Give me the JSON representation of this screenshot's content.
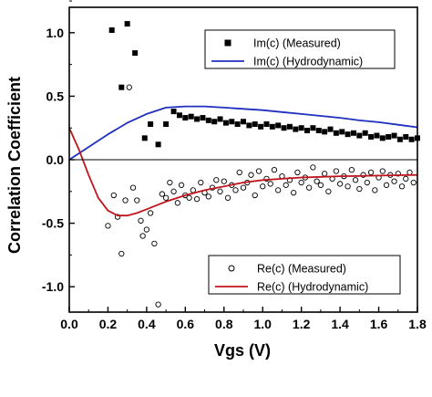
{
  "chart_data": {
    "type": "scatter",
    "xlabel": "Vgs (V)",
    "ylabel": "Correlation Coefficient",
    "xlim": [
      0.0,
      1.8
    ],
    "ylim": [
      -1.2,
      1.2
    ],
    "xticks": [
      "0.0",
      "0.2",
      "0.4",
      "0.6",
      "0.8",
      "1.0",
      "1.2",
      "1.4",
      "1.6",
      "1.8"
    ],
    "yticks": [
      "-1.0",
      "-0.5",
      "0.0",
      "0.5",
      "1.0"
    ],
    "zero_line": true,
    "grid": false,
    "legend_top": {
      "placement": "top-right",
      "entries": [
        {
          "label": "Im(c) (Measured)",
          "marker": "filled-square",
          "color": "#000000"
        },
        {
          "label": "Im(c) (Hydrodynamic)",
          "marker": "line",
          "color": "#1f2fbf"
        }
      ]
    },
    "legend_bottom": {
      "placement": "bottom-right",
      "entries": [
        {
          "label": "Re(c) (Measured)",
          "marker": "open-circle",
          "color": "#000000"
        },
        {
          "label": "Re(c) (Hydrodynamic)",
          "marker": "line",
          "color": "#c0141c"
        }
      ]
    },
    "series": [
      {
        "name": "Im(c) (Measured)",
        "style": "filled-square",
        "color": "#000000",
        "x": [
          0.22,
          0.27,
          0.3,
          0.34,
          0.39,
          0.42,
          0.46,
          0.5,
          0.54,
          0.57,
          0.6,
          0.63,
          0.66,
          0.69,
          0.72,
          0.75,
          0.78,
          0.81,
          0.84,
          0.87,
          0.9,
          0.93,
          0.96,
          0.99,
          1.02,
          1.05,
          1.08,
          1.11,
          1.14,
          1.17,
          1.2,
          1.23,
          1.26,
          1.29,
          1.32,
          1.35,
          1.38,
          1.41,
          1.44,
          1.47,
          1.5,
          1.53,
          1.56,
          1.59,
          1.62,
          1.65,
          1.68,
          1.71,
          1.74,
          1.77,
          1.8
        ],
        "y": [
          1.02,
          0.57,
          1.07,
          0.84,
          0.17,
          0.28,
          0.12,
          0.28,
          0.38,
          0.35,
          0.33,
          0.34,
          0.32,
          0.33,
          0.31,
          0.3,
          0.32,
          0.29,
          0.3,
          0.28,
          0.3,
          0.27,
          0.28,
          0.26,
          0.28,
          0.26,
          0.27,
          0.25,
          0.26,
          0.24,
          0.25,
          0.23,
          0.25,
          0.23,
          0.22,
          0.24,
          0.21,
          0.22,
          0.2,
          0.21,
          0.19,
          0.21,
          0.18,
          0.19,
          0.17,
          0.18,
          0.19,
          0.16,
          0.18,
          0.16,
          0.17
        ]
      },
      {
        "name": "Re(c) (Measured)",
        "style": "open-circle",
        "color": "#000000",
        "x": [
          0.2,
          0.23,
          0.25,
          0.27,
          0.29,
          0.31,
          0.33,
          0.35,
          0.37,
          0.38,
          0.4,
          0.42,
          0.44,
          0.46,
          0.48,
          0.5,
          0.52,
          0.54,
          0.56,
          0.58,
          0.6,
          0.62,
          0.64,
          0.66,
          0.68,
          0.7,
          0.72,
          0.74,
          0.76,
          0.78,
          0.8,
          0.82,
          0.84,
          0.86,
          0.88,
          0.9,
          0.92,
          0.94,
          0.96,
          0.98,
          1.0,
          1.02,
          1.04,
          1.06,
          1.08,
          1.1,
          1.12,
          1.14,
          1.16,
          1.18,
          1.2,
          1.22,
          1.24,
          1.26,
          1.28,
          1.3,
          1.32,
          1.34,
          1.36,
          1.38,
          1.4,
          1.42,
          1.44,
          1.46,
          1.48,
          1.5,
          1.52,
          1.54,
          1.56,
          1.58,
          1.6,
          1.62,
          1.64,
          1.66,
          1.68,
          1.7,
          1.72,
          1.74,
          1.76,
          1.78
        ],
        "y": [
          -0.52,
          -0.28,
          -0.45,
          -0.74,
          -0.32,
          0.57,
          -0.22,
          -0.32,
          -0.48,
          -0.6,
          -0.55,
          -0.42,
          -0.66,
          -1.14,
          -0.27,
          -0.3,
          -0.18,
          -0.25,
          -0.34,
          -0.2,
          -0.28,
          -0.3,
          -0.24,
          -0.31,
          -0.18,
          -0.26,
          -0.29,
          -0.22,
          -0.16,
          -0.25,
          -0.17,
          -0.3,
          -0.2,
          -0.24,
          -0.1,
          -0.22,
          -0.18,
          -0.12,
          -0.28,
          -0.09,
          -0.21,
          -0.15,
          -0.19,
          -0.08,
          -0.24,
          -0.13,
          -0.2,
          -0.16,
          -0.26,
          -0.1,
          -0.18,
          -0.14,
          -0.22,
          -0.06,
          -0.17,
          -0.2,
          -0.11,
          -0.25,
          -0.15,
          -0.09,
          -0.19,
          -0.13,
          -0.21,
          -0.08,
          -0.16,
          -0.23,
          -0.12,
          -0.18,
          -0.1,
          -0.24,
          -0.14,
          -0.09,
          -0.2,
          -0.12,
          -0.17,
          -0.11,
          -0.21,
          -0.15,
          -0.1,
          -0.18
        ]
      },
      {
        "name": "Im(c) (Hydrodynamic)",
        "style": "line",
        "color": "#1f2fbf",
        "x": [
          0.0,
          0.1,
          0.2,
          0.3,
          0.4,
          0.5,
          0.6,
          0.7,
          0.8,
          0.9,
          1.0,
          1.1,
          1.2,
          1.3,
          1.4,
          1.5,
          1.6,
          1.7,
          1.8
        ],
        "y": [
          0.0,
          0.1,
          0.2,
          0.29,
          0.36,
          0.41,
          0.42,
          0.42,
          0.41,
          0.4,
          0.39,
          0.375,
          0.36,
          0.345,
          0.33,
          0.31,
          0.295,
          0.275,
          0.255
        ]
      },
      {
        "name": "Re(c) (Hydrodynamic)",
        "style": "line",
        "color": "#c0141c",
        "x": [
          0.0,
          0.05,
          0.1,
          0.15,
          0.2,
          0.25,
          0.3,
          0.35,
          0.4,
          0.45,
          0.5,
          0.6,
          0.7,
          0.8,
          0.9,
          1.0,
          1.1,
          1.2,
          1.3,
          1.4,
          1.5,
          1.6,
          1.7,
          1.8
        ],
        "y": [
          0.25,
          0.08,
          -0.12,
          -0.3,
          -0.4,
          -0.44,
          -0.44,
          -0.42,
          -0.39,
          -0.36,
          -0.33,
          -0.28,
          -0.24,
          -0.21,
          -0.18,
          -0.16,
          -0.15,
          -0.14,
          -0.135,
          -0.13,
          -0.128,
          -0.125,
          -0.122,
          -0.12
        ]
      }
    ]
  }
}
